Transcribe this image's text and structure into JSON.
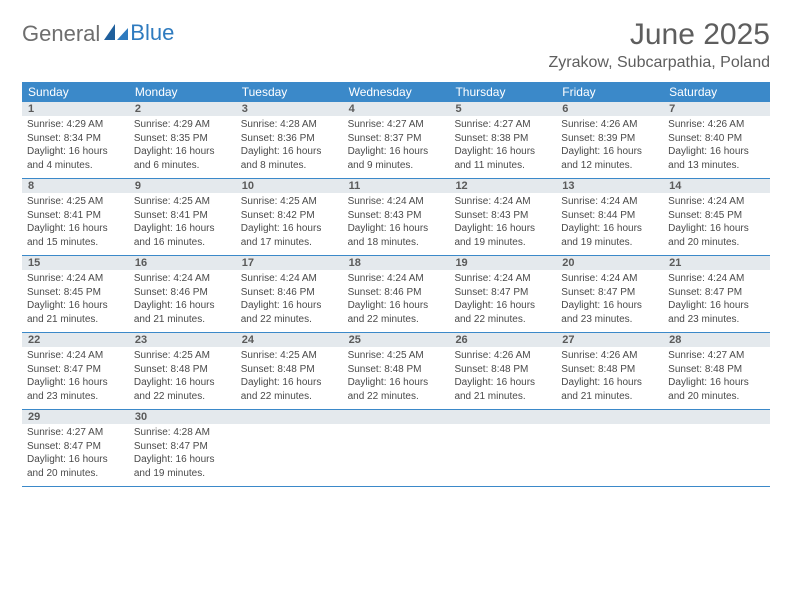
{
  "colors": {
    "header_bg": "#3b89c9",
    "header_text": "#ffffff",
    "daynum_bg": "#e4e9ed",
    "text": "#4a4a4a",
    "title_text": "#5e5e5e",
    "logo_gray": "#6e6e6e",
    "logo_blue": "#2f7bbf",
    "rule": "#3b89c9",
    "background": "#ffffff"
  },
  "typography": {
    "title_fontsize": 30,
    "location_fontsize": 16,
    "weekday_fontsize": 12,
    "daynum_fontsize": 11,
    "body_fontsize": 10
  },
  "logo": {
    "word1": "General",
    "word2": "Blue"
  },
  "title": "June 2025",
  "location": "Zyrakow, Subcarpathia, Poland",
  "weekdays": [
    "Sunday",
    "Monday",
    "Tuesday",
    "Wednesday",
    "Thursday",
    "Friday",
    "Saturday"
  ],
  "weeks": [
    [
      {
        "n": "1",
        "sunrise": "Sunrise: 4:29 AM",
        "sunset": "Sunset: 8:34 PM",
        "day": "Daylight: 16 hours and 4 minutes."
      },
      {
        "n": "2",
        "sunrise": "Sunrise: 4:29 AM",
        "sunset": "Sunset: 8:35 PM",
        "day": "Daylight: 16 hours and 6 minutes."
      },
      {
        "n": "3",
        "sunrise": "Sunrise: 4:28 AM",
        "sunset": "Sunset: 8:36 PM",
        "day": "Daylight: 16 hours and 8 minutes."
      },
      {
        "n": "4",
        "sunrise": "Sunrise: 4:27 AM",
        "sunset": "Sunset: 8:37 PM",
        "day": "Daylight: 16 hours and 9 minutes."
      },
      {
        "n": "5",
        "sunrise": "Sunrise: 4:27 AM",
        "sunset": "Sunset: 8:38 PM",
        "day": "Daylight: 16 hours and 11 minutes."
      },
      {
        "n": "6",
        "sunrise": "Sunrise: 4:26 AM",
        "sunset": "Sunset: 8:39 PM",
        "day": "Daylight: 16 hours and 12 minutes."
      },
      {
        "n": "7",
        "sunrise": "Sunrise: 4:26 AM",
        "sunset": "Sunset: 8:40 PM",
        "day": "Daylight: 16 hours and 13 minutes."
      }
    ],
    [
      {
        "n": "8",
        "sunrise": "Sunrise: 4:25 AM",
        "sunset": "Sunset: 8:41 PM",
        "day": "Daylight: 16 hours and 15 minutes."
      },
      {
        "n": "9",
        "sunrise": "Sunrise: 4:25 AM",
        "sunset": "Sunset: 8:41 PM",
        "day": "Daylight: 16 hours and 16 minutes."
      },
      {
        "n": "10",
        "sunrise": "Sunrise: 4:25 AM",
        "sunset": "Sunset: 8:42 PM",
        "day": "Daylight: 16 hours and 17 minutes."
      },
      {
        "n": "11",
        "sunrise": "Sunrise: 4:24 AM",
        "sunset": "Sunset: 8:43 PM",
        "day": "Daylight: 16 hours and 18 minutes."
      },
      {
        "n": "12",
        "sunrise": "Sunrise: 4:24 AM",
        "sunset": "Sunset: 8:43 PM",
        "day": "Daylight: 16 hours and 19 minutes."
      },
      {
        "n": "13",
        "sunrise": "Sunrise: 4:24 AM",
        "sunset": "Sunset: 8:44 PM",
        "day": "Daylight: 16 hours and 19 minutes."
      },
      {
        "n": "14",
        "sunrise": "Sunrise: 4:24 AM",
        "sunset": "Sunset: 8:45 PM",
        "day": "Daylight: 16 hours and 20 minutes."
      }
    ],
    [
      {
        "n": "15",
        "sunrise": "Sunrise: 4:24 AM",
        "sunset": "Sunset: 8:45 PM",
        "day": "Daylight: 16 hours and 21 minutes."
      },
      {
        "n": "16",
        "sunrise": "Sunrise: 4:24 AM",
        "sunset": "Sunset: 8:46 PM",
        "day": "Daylight: 16 hours and 21 minutes."
      },
      {
        "n": "17",
        "sunrise": "Sunrise: 4:24 AM",
        "sunset": "Sunset: 8:46 PM",
        "day": "Daylight: 16 hours and 22 minutes."
      },
      {
        "n": "18",
        "sunrise": "Sunrise: 4:24 AM",
        "sunset": "Sunset: 8:46 PM",
        "day": "Daylight: 16 hours and 22 minutes."
      },
      {
        "n": "19",
        "sunrise": "Sunrise: 4:24 AM",
        "sunset": "Sunset: 8:47 PM",
        "day": "Daylight: 16 hours and 22 minutes."
      },
      {
        "n": "20",
        "sunrise": "Sunrise: 4:24 AM",
        "sunset": "Sunset: 8:47 PM",
        "day": "Daylight: 16 hours and 23 minutes."
      },
      {
        "n": "21",
        "sunrise": "Sunrise: 4:24 AM",
        "sunset": "Sunset: 8:47 PM",
        "day": "Daylight: 16 hours and 23 minutes."
      }
    ],
    [
      {
        "n": "22",
        "sunrise": "Sunrise: 4:24 AM",
        "sunset": "Sunset: 8:47 PM",
        "day": "Daylight: 16 hours and 23 minutes."
      },
      {
        "n": "23",
        "sunrise": "Sunrise: 4:25 AM",
        "sunset": "Sunset: 8:48 PM",
        "day": "Daylight: 16 hours and 22 minutes."
      },
      {
        "n": "24",
        "sunrise": "Sunrise: 4:25 AM",
        "sunset": "Sunset: 8:48 PM",
        "day": "Daylight: 16 hours and 22 minutes."
      },
      {
        "n": "25",
        "sunrise": "Sunrise: 4:25 AM",
        "sunset": "Sunset: 8:48 PM",
        "day": "Daylight: 16 hours and 22 minutes."
      },
      {
        "n": "26",
        "sunrise": "Sunrise: 4:26 AM",
        "sunset": "Sunset: 8:48 PM",
        "day": "Daylight: 16 hours and 21 minutes."
      },
      {
        "n": "27",
        "sunrise": "Sunrise: 4:26 AM",
        "sunset": "Sunset: 8:48 PM",
        "day": "Daylight: 16 hours and 21 minutes."
      },
      {
        "n": "28",
        "sunrise": "Sunrise: 4:27 AM",
        "sunset": "Sunset: 8:48 PM",
        "day": "Daylight: 16 hours and 20 minutes."
      }
    ],
    [
      {
        "n": "29",
        "sunrise": "Sunrise: 4:27 AM",
        "sunset": "Sunset: 8:47 PM",
        "day": "Daylight: 16 hours and 20 minutes."
      },
      {
        "n": "30",
        "sunrise": "Sunrise: 4:28 AM",
        "sunset": "Sunset: 8:47 PM",
        "day": "Daylight: 16 hours and 19 minutes."
      },
      {
        "n": "",
        "sunrise": "",
        "sunset": "",
        "day": ""
      },
      {
        "n": "",
        "sunrise": "",
        "sunset": "",
        "day": ""
      },
      {
        "n": "",
        "sunrise": "",
        "sunset": "",
        "day": ""
      },
      {
        "n": "",
        "sunrise": "",
        "sunset": "",
        "day": ""
      },
      {
        "n": "",
        "sunrise": "",
        "sunset": "",
        "day": ""
      }
    ]
  ]
}
